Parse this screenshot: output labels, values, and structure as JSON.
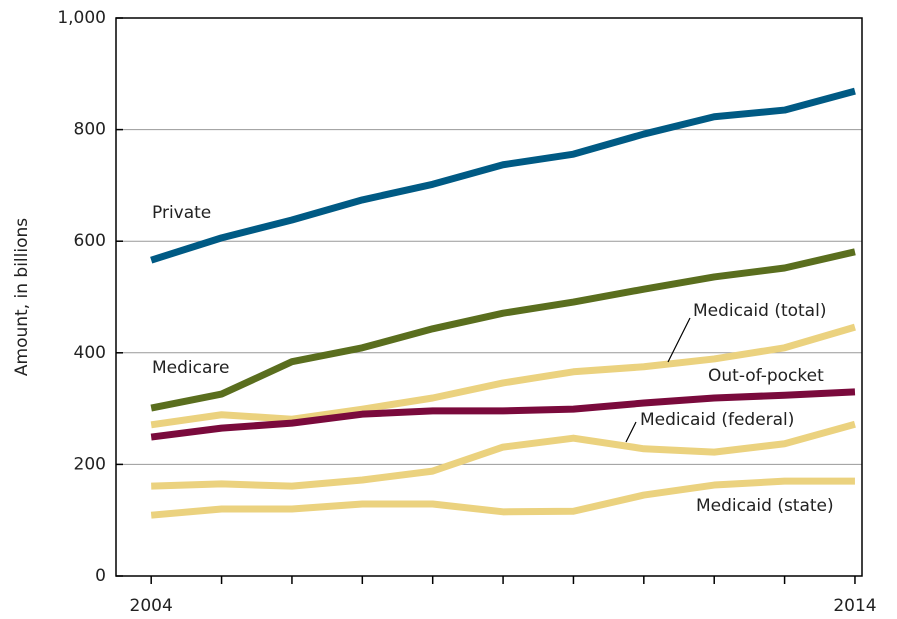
{
  "chart_data": {
    "type": "line",
    "y_label": "Amount, in billions",
    "x": [
      2004,
      2005,
      2006,
      2007,
      2008,
      2009,
      2010,
      2011,
      2012,
      2013,
      2014
    ],
    "xlim": [
      2003.5,
      2014.1
    ],
    "xticks": [
      2004,
      2014
    ],
    "xminor_ticks": [
      2005,
      2006,
      2007,
      2008,
      2009,
      2010,
      2011,
      2012,
      2013
    ],
    "ylim": [
      0,
      1000
    ],
    "yticks": [
      0,
      200,
      400,
      600,
      800,
      {
        "value": 1000,
        "label": "1,000"
      }
    ],
    "grid": true,
    "series": [
      {
        "name": "Private",
        "color": "#005a84",
        "values": [
          566,
          606,
          638,
          674,
          702,
          737,
          756,
          792,
          823,
          835,
          869
        ]
      },
      {
        "name": "Medicare",
        "color": "#5a6e1e",
        "values": [
          301,
          326,
          384,
          409,
          443,
          471,
          491,
          514,
          536,
          552,
          581
        ]
      },
      {
        "name": "Medicaid (total)",
        "color": "#ebd27f",
        "values": [
          271,
          289,
          281,
          299,
          319,
          346,
          366,
          375,
          389,
          409,
          446
        ]
      },
      {
        "name": "Out-of-pocket",
        "color": "#7a0a3c",
        "values": [
          249,
          265,
          274,
          290,
          296,
          296,
          299,
          310,
          319,
          324,
          330
        ]
      },
      {
        "name": "Medicaid (federal)",
        "color": "#ebd27f",
        "values": [
          161,
          165,
          161,
          172,
          188,
          231,
          247,
          228,
          222,
          237,
          272
        ]
      },
      {
        "name": "Medicaid (state)",
        "color": "#ebd27f",
        "values": [
          109,
          120,
          120,
          129,
          129,
          115,
          116,
          145,
          163,
          170,
          170
        ]
      }
    ]
  }
}
